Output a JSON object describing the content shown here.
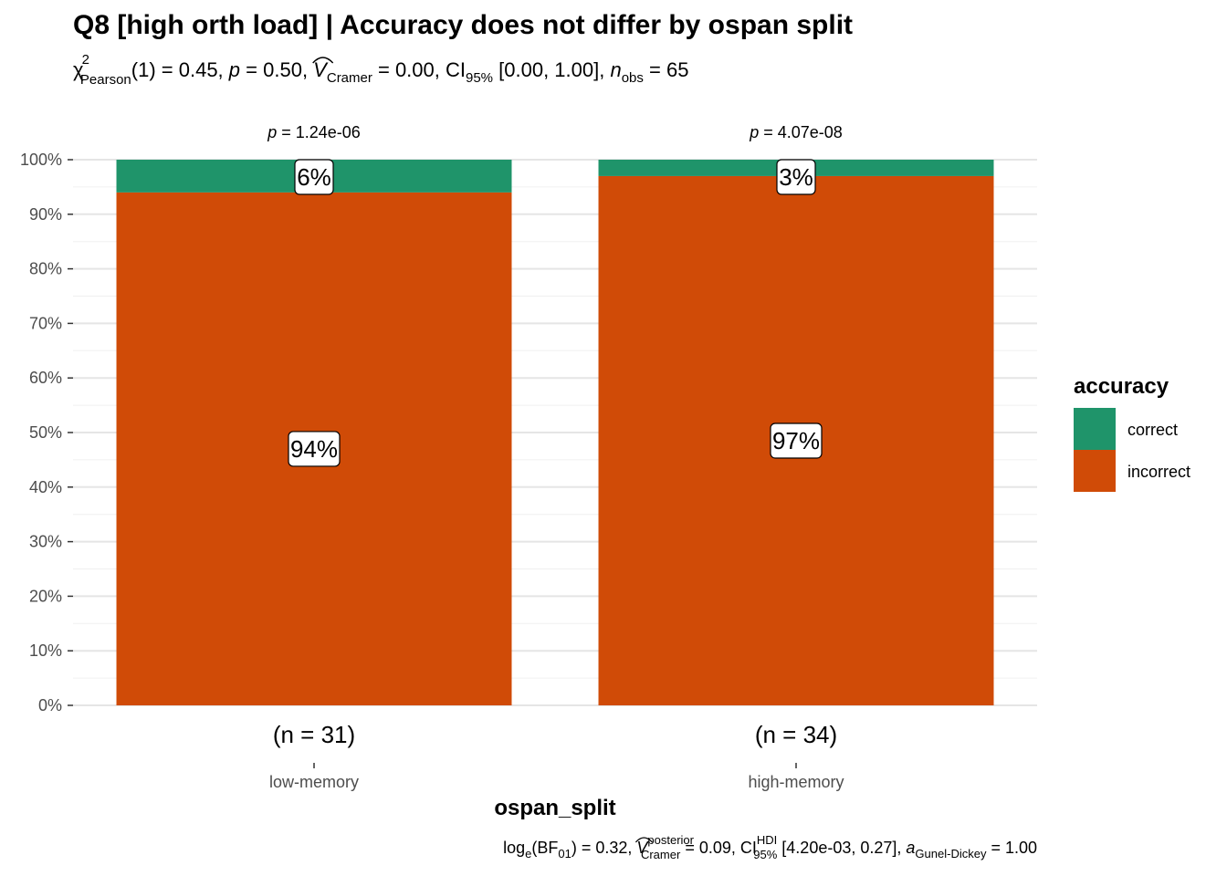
{
  "chart_data": {
    "type": "bar",
    "stacked": true,
    "percent": true,
    "title": "Q8 [high orth load] | Accuracy does not differ by ospan split",
    "subtitle": {
      "chi": "χ",
      "chi_sup": "2",
      "chi_sub": "Pearson",
      "df_stat": "(1) = 0.45, ",
      "p_sym": "p",
      "p_val": " = 0.50, ",
      "v_sym": "V",
      "v_sub": "Cramer",
      "v_val": " = 0.00, CI",
      "ci_sub": "95%",
      "ci_val": " [0.00, 1.00], ",
      "n_sym": "n",
      "n_sub": "obs",
      "n_val": " = 65"
    },
    "caption": {
      "log": "log",
      "log_sub": "e",
      "bf": "(BF",
      "bf_sub": "01",
      "bf_val": ") = 0.32, ",
      "v_sym": "V",
      "v_sup": "posterior",
      "v_sub": "Cramer",
      "v_val": " = 0.09, CI",
      "ci_sup": "HDI",
      "ci_sub": "95%",
      "ci_val": " [4.20e-03, 0.27], ",
      "a_sym": "a",
      "a_sub": "Gunel-Dickey",
      "a_val": " = 1.00"
    },
    "xlabel": "ospan_split",
    "ylabel": "",
    "categories": [
      "low-memory",
      "high-memory"
    ],
    "counts": [
      "(n = 31)",
      "(n = 34)"
    ],
    "p_labels": [
      {
        "sym": "p",
        "val": " = 1.24e-06"
      },
      {
        "sym": "p",
        "val": " = 4.07e-08"
      }
    ],
    "series": [
      {
        "name": "incorrect",
        "color": "#D04B07",
        "values": [
          0.94,
          0.97
        ],
        "labels": [
          "94%",
          "97%"
        ]
      },
      {
        "name": "correct",
        "color": "#1F946A",
        "values": [
          0.06,
          0.03
        ],
        "labels": [
          "6%",
          "3%"
        ]
      }
    ],
    "legend": {
      "title": "accuracy",
      "position": "right",
      "entries": [
        {
          "name": "correct",
          "color": "#1F946A"
        },
        {
          "name": "incorrect",
          "color": "#D04B07"
        }
      ]
    },
    "yticks": [
      "0%",
      "10%",
      "20%",
      "30%",
      "40%",
      "50%",
      "60%",
      "70%",
      "80%",
      "90%",
      "100%"
    ],
    "ylim": [
      0,
      1
    ],
    "grid": true
  }
}
